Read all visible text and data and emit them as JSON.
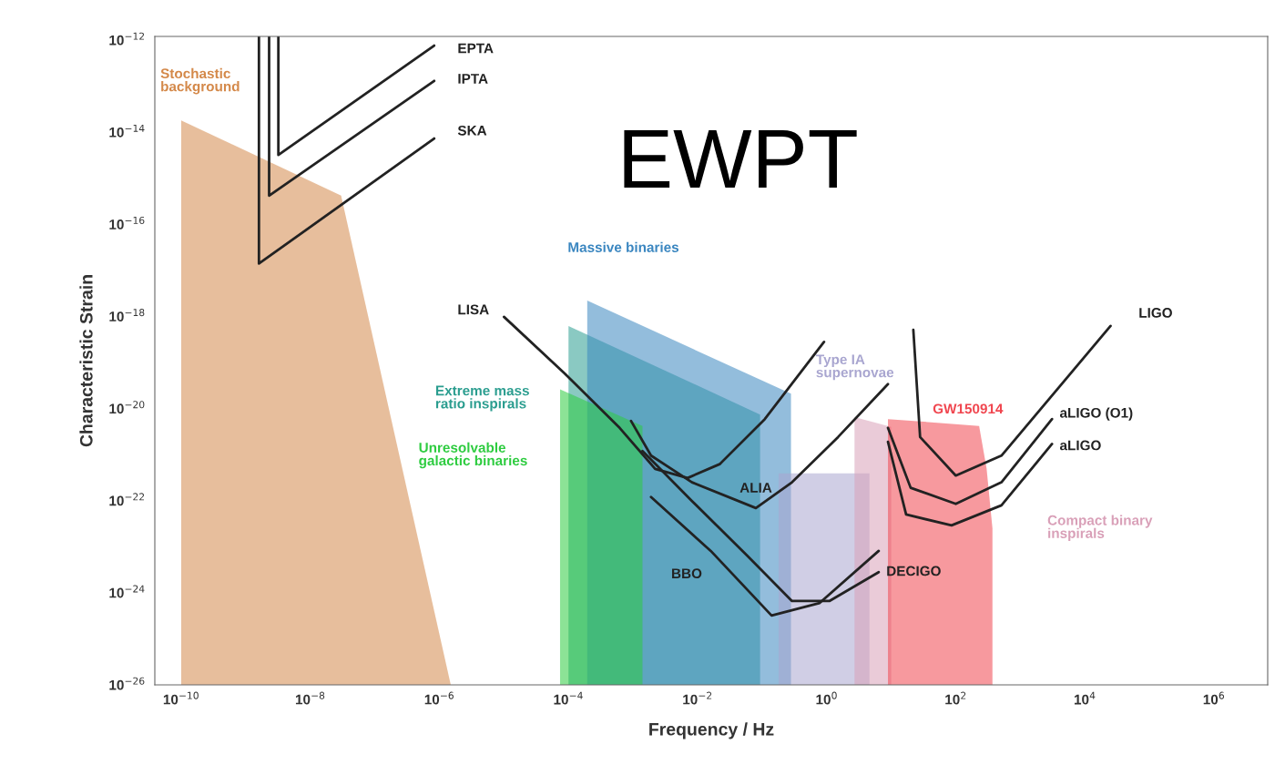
{
  "chart_data": {
    "type": "line",
    "title": "EWPT",
    "xlabel": "Frequency / Hz",
    "ylabel": "Characteristic Strain",
    "log": "xy",
    "grid": false,
    "legend": false,
    "xlim": [
      3.9e-11,
      6800000.0
    ],
    "ylim": [
      1e-26,
      1.2e-12
    ],
    "xticks": [
      {
        "value": 1e-10,
        "label": "10$^{−10}$"
      },
      {
        "value": 1e-08,
        "label": "10$^{−8}$"
      },
      {
        "value": 1e-06,
        "label": "10$^{−6}$"
      },
      {
        "value": 0.0001,
        "label": "10$^{−4}$"
      },
      {
        "value": 0.01,
        "label": "10$^{−2}$"
      },
      {
        "value": 1,
        "label": "10$^{0}$"
      },
      {
        "value": 100,
        "label": "10$^{2}$"
      },
      {
        "value": 10000.0,
        "label": "10$^{4}$"
      },
      {
        "value": 1000000.0,
        "label": "10$^{6}$"
      }
    ],
    "yticks": [
      {
        "value": 1e-12,
        "label": "10$^{−12}$"
      },
      {
        "value": 1e-14,
        "label": "10$^{−14}$"
      },
      {
        "value": 1e-16,
        "label": "10$^{−16}$"
      },
      {
        "value": 1e-18,
        "label": "10$^{−18}$"
      },
      {
        "value": 1e-20,
        "label": "10$^{−20}$"
      },
      {
        "value": 1e-22,
        "label": "10$^{−22}$"
      },
      {
        "value": 1e-24,
        "label": "10$^{−24}$"
      },
      {
        "value": 1e-26,
        "label": "10$^{−26}$"
      }
    ],
    "series": [
      {
        "type": "area",
        "name": "Stochastic\nbackground",
        "color": "#d4894a",
        "x": [
          1e-10,
          3e-08,
          1.5e-06
        ],
        "values": [
          1.8e-14,
          4.2e-16,
          1e-26
        ]
      },
      {
        "type": "area",
        "name": "Extreme mass\nratio inspirals",
        "color": "#2a9d8f",
        "x": [
          0.0001,
          0.093
        ],
        "values": [
          6.2e-19,
          7.4e-21
        ]
      },
      {
        "type": "area",
        "name": "Massive binaries",
        "color": "#3a86c0",
        "x": [
          0.000195,
          0.28
        ],
        "values": [
          2.2e-18,
          2.1e-20
        ]
      },
      {
        "type": "area",
        "name": "Unresolvable\ngalactic binaries",
        "color": "#2ecc40",
        "x": [
          7.4e-05,
          0.0014
        ],
        "values": [
          2.6e-20,
          4.2e-21
        ]
      },
      {
        "type": "area",
        "name": "Type IA\nsupernovae",
        "color": "#a9a6d0",
        "x": [
          0.18,
          4.6
        ],
        "values": [
          3.9e-22,
          3.9e-22
        ]
      },
      {
        "type": "area",
        "name": "Compact binary\ninspirals",
        "color": "#d9a0b8",
        "x": [
          2.7,
          10
        ],
        "values": [
          6.5e-21,
          4e-21
        ]
      },
      {
        "type": "area",
        "name": "GW150914",
        "color": "#f0464f",
        "x": [
          8.9,
          230,
          300,
          370
        ],
        "values": [
          5.9e-21,
          4.2e-21,
          5e-22,
          2.5e-23
        ]
      },
      {
        "name": "EPTA",
        "color": "#222222",
        "x": [
          3.2e-09,
          3.2e-09,
          8.3e-07
        ],
        "values": [
          1.2e-12,
          3.2e-15,
          7.6e-13
        ]
      },
      {
        "name": "IPTA",
        "color": "#222222",
        "x": [
          2.3e-09,
          2.3e-09,
          8.3e-07
        ],
        "values": [
          1.2e-12,
          4.2e-16,
          1.3e-13
        ]
      },
      {
        "name": "SKA",
        "color": "#222222",
        "x": [
          1.6e-09,
          1.6e-09,
          8.3e-07
        ],
        "values": [
          1.2e-12,
          1.4e-17,
          7.3e-15
        ]
      },
      {
        "name": "LISA",
        "color": "#222222",
        "x": [
          1e-05,
          8.7e-05,
          0.00062,
          0.0022,
          0.007,
          0.022,
          0.11,
          0.91
        ],
        "values": [
          9.8e-19,
          5.8e-20,
          3.8e-21,
          4.9e-22,
          3.1e-22,
          6.2e-22,
          5.9e-21,
          2.8e-19
        ]
      },
      {
        "name": "ALIA",
        "color": "#222222",
        "x": [
          0.00093,
          0.0019,
          0.0082,
          0.08,
          0.29,
          1.5,
          8.9
        ],
        "values": [
          5.4e-21,
          9.5e-22,
          2.5e-22,
          6.9e-23,
          2.5e-22,
          2.4e-21,
          3.4e-20
        ]
      },
      {
        "name": "DECIGO",
        "color": "#222222",
        "x": [
          0.0014,
          0.0082,
          0.058,
          0.29,
          1.1,
          6.4
        ],
        "values": [
          1.2e-21,
          9.8e-23,
          6.5e-24,
          6.6e-25,
          6.6e-25,
          2.8e-24
        ]
      },
      {
        "name": "BBO",
        "color": "#222222",
        "x": [
          0.0019,
          0.016,
          0.14,
          0.78,
          6.4
        ],
        "values": [
          1.2e-22,
          8.1e-24,
          3.2e-25,
          6e-25,
          8.1e-24
        ]
      },
      {
        "name": "LIGO",
        "color": "#222222",
        "x": [
          22,
          28,
          100,
          510,
          25000.0
        ],
        "values": [
          5.1e-19,
          2.4e-21,
          3.5e-22,
          9.5e-22,
          6.2e-19
        ]
      },
      {
        "name": "aLIGO (O1)",
        "color": "#222222",
        "x": [
          8.9,
          20,
          100,
          510,
          3100
        ],
        "values": [
          3.8e-21,
          1.9e-22,
          8.5e-23,
          2.5e-22,
          5.9e-21
        ]
      },
      {
        "name": "aLIGO",
        "color": "#222222",
        "x": [
          8.9,
          17,
          86,
          510,
          3100
        ],
        "values": [
          1.9e-21,
          5e-23,
          2.9e-23,
          7.9e-23,
          1.7e-21
        ]
      }
    ]
  }
}
